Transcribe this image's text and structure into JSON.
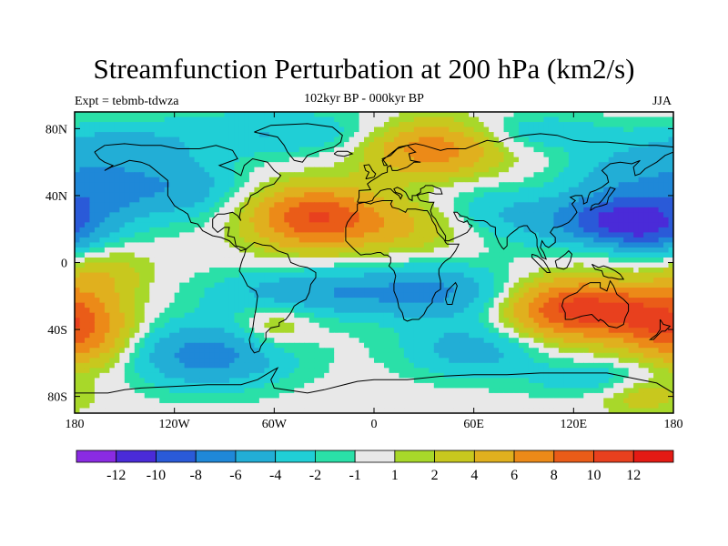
{
  "chart_data": {
    "type": "heatmap",
    "title": "Streamfunction Perturbation at 200 hPa (km2/s)",
    "subtitle": "102kyr BP - 000kyr BP",
    "left_label": "Expt = tebmb-tdwza",
    "right_label": "JJA",
    "projection": "cylindrical equidistant",
    "xlim": [
      -180,
      180
    ],
    "ylim": [
      -90,
      90
    ],
    "x_ticks": [
      {
        "value": -180,
        "label": "180"
      },
      {
        "value": -120,
        "label": "120W"
      },
      {
        "value": -60,
        "label": "60W"
      },
      {
        "value": 0,
        "label": "0"
      },
      {
        "value": 60,
        "label": "60E"
      },
      {
        "value": 120,
        "label": "120E"
      },
      {
        "value": 180,
        "label": "180"
      }
    ],
    "y_ticks": [
      {
        "value": 80,
        "label": "80N"
      },
      {
        "value": 40,
        "label": "40N"
      },
      {
        "value": 0,
        "label": "0"
      },
      {
        "value": -40,
        "label": "40S"
      },
      {
        "value": -80,
        "label": "80S"
      }
    ],
    "colorbar": {
      "colors": [
        "#8a2be2",
        "#4a2bd8",
        "#2a5ad8",
        "#1f88d8",
        "#22aed6",
        "#20cfd6",
        "#2ae0a8",
        "#e8e8e8",
        "#a8d82a",
        "#c8c81e",
        "#e0b01e",
        "#ec8a18",
        "#ea5c18",
        "#e8401e",
        "#e41a14"
      ],
      "labels": [
        "-12",
        "-10",
        "-8",
        "-6",
        "-4",
        "-2",
        "-1",
        "1",
        "2",
        "4",
        "6",
        "8",
        "10",
        "12"
      ]
    },
    "features": [
      {
        "lon": -35,
        "lat": 27,
        "value": 9.0,
        "sx": 28,
        "sy": 13
      },
      {
        "lon": 30,
        "lat": 24,
        "value": 5.0,
        "sx": 30,
        "sy": 12
      },
      {
        "lon": 35,
        "lat": 68,
        "value": 6.5,
        "sx": 28,
        "sy": 12
      },
      {
        "lon": 120,
        "lat": -28,
        "value": 10.0,
        "sx": 30,
        "sy": 13
      },
      {
        "lon": 165,
        "lat": -32,
        "value": 3.5,
        "sx": 20,
        "sy": 12
      },
      {
        "lon": -175,
        "lat": -42,
        "value": 6.5,
        "sx": 22,
        "sy": 16
      },
      {
        "lon": -165,
        "lat": -5,
        "value": 3.0,
        "sx": 20,
        "sy": 12
      },
      {
        "lon": -60,
        "lat": -38,
        "value": 3.0,
        "sx": 16,
        "sy": 10
      },
      {
        "lon": 140,
        "lat": 8,
        "value": 3.0,
        "sx": 20,
        "sy": 8
      },
      {
        "lon": 155,
        "lat": 22,
        "value": -11.0,
        "sx": 30,
        "sy": 14
      },
      {
        "lon": 60,
        "lat": 28,
        "value": -4.5,
        "sx": 40,
        "sy": 12
      },
      {
        "lon": -40,
        "lat": -18,
        "value": -4.5,
        "sx": 40,
        "sy": 10
      },
      {
        "lon": 40,
        "lat": -18,
        "value": -5.0,
        "sx": 35,
        "sy": 12
      },
      {
        "lon": -120,
        "lat": 45,
        "value": -4.5,
        "sx": 28,
        "sy": 14
      },
      {
        "lon": -100,
        "lat": -55,
        "value": -6.0,
        "sx": 35,
        "sy": 14
      },
      {
        "lon": 60,
        "lat": -52,
        "value": -4.0,
        "sx": 30,
        "sy": 12
      },
      {
        "lon": -165,
        "lat": 45,
        "value": -3.5,
        "sx": 20,
        "sy": 12
      },
      {
        "lon": -60,
        "lat": 78,
        "value": -3.0,
        "sx": 50,
        "sy": 10
      },
      {
        "lon": 150,
        "lat": 55,
        "value": -3.0,
        "sx": 25,
        "sy": 12
      },
      {
        "lon": 100,
        "lat": 78,
        "value": -2.5,
        "sx": 30,
        "sy": 8
      },
      {
        "lon": -160,
        "lat": 70,
        "value": -3.0,
        "sx": 30,
        "sy": 10
      },
      {
        "lon": 140,
        "lat": -70,
        "value": -3.0,
        "sx": 30,
        "sy": 8
      },
      {
        "lon": 160,
        "lat": -78,
        "value": 3.0,
        "sx": 20,
        "sy": 8
      }
    ]
  }
}
